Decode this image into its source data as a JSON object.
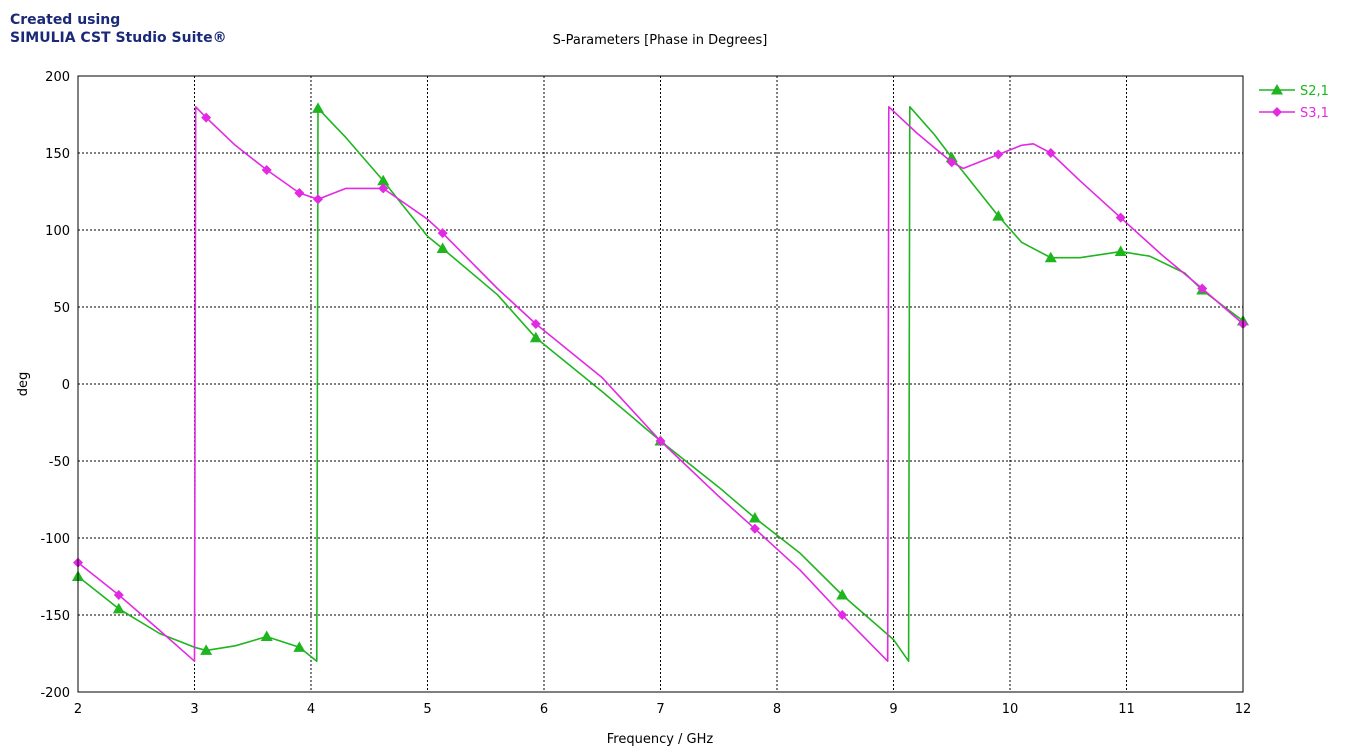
{
  "watermark": {
    "line1": "Created using",
    "line2": "SIMULIA CST Studio Suite®"
  },
  "chart_data": {
    "type": "line",
    "title": "S-Parameters [Phase in Degrees]",
    "xlabel": "Frequency / GHz",
    "ylabel": "deg",
    "xlim": [
      2,
      12
    ],
    "ylim": [
      -200,
      200
    ],
    "xticks": [
      "2",
      "3",
      "4",
      "5",
      "6",
      "7",
      "8",
      "9",
      "10",
      "11",
      "12"
    ],
    "yticks": [
      "200",
      "150",
      "100",
      "50",
      "0",
      "-50",
      "-100",
      "-150",
      "-200"
    ],
    "grid": true,
    "legend_position": "right",
    "series": [
      {
        "name": "S2,1",
        "color": "#1fb51f",
        "marker": "triangle",
        "x": [
          2.0,
          2.35,
          2.7,
          3.0,
          3.1,
          3.35,
          3.62,
          3.9,
          4.05,
          4.06,
          4.3,
          4.62,
          5.0,
          5.13,
          5.6,
          5.93,
          6.5,
          7.0,
          7.5,
          7.81,
          8.2,
          8.56,
          9.0,
          9.13,
          9.14,
          9.35,
          9.5,
          9.9,
          10.1,
          10.35,
          10.6,
          10.95,
          11.2,
          11.5,
          11.65,
          12.0
        ],
        "y": [
          -125,
          -146,
          -162,
          -171,
          -173,
          -170,
          -164,
          -171,
          -180,
          179,
          160,
          132,
          96,
          88,
          58,
          30,
          -5,
          -37,
          -67,
          -87,
          -110,
          -137,
          -166,
          -180,
          180,
          162,
          147,
          109,
          92,
          82,
          82,
          86,
          83,
          72,
          61,
          41
        ],
        "markers_x": [
          2.0,
          2.35,
          3.1,
          3.62,
          3.9,
          4.06,
          4.62,
          5.13,
          5.93,
          7.0,
          7.81,
          8.56,
          9.5,
          9.9,
          10.35,
          10.95,
          11.65,
          12.0
        ],
        "markers_y": [
          -125,
          -146,
          -173,
          -164,
          -171,
          179,
          132,
          88,
          30,
          -37,
          -87,
          -137,
          147,
          109,
          82,
          86,
          61,
          41
        ]
      },
      {
        "name": "S3,1",
        "color": "#e32ae3",
        "marker": "diamond",
        "x": [
          2.0,
          2.35,
          2.7,
          3.0,
          3.01,
          3.1,
          3.35,
          3.62,
          3.9,
          4.06,
          4.3,
          4.62,
          5.0,
          5.13,
          5.6,
          5.93,
          6.5,
          7.0,
          7.5,
          7.81,
          8.2,
          8.56,
          8.95,
          8.96,
          9.2,
          9.5,
          9.6,
          9.7,
          9.9,
          10.1,
          10.2,
          10.35,
          10.6,
          10.95,
          11.3,
          11.65,
          12.0
        ],
        "y": [
          -116,
          -137,
          -160,
          -180,
          180,
          173,
          155,
          139,
          124,
          120,
          127,
          127,
          107,
          98,
          62,
          39,
          4,
          -37,
          -73,
          -94,
          -121,
          -150,
          -180,
          180,
          163,
          144,
          140,
          143,
          149,
          155,
          156,
          150,
          132,
          108,
          84,
          62,
          39
        ],
        "markers_x": [
          2.0,
          2.35,
          3.1,
          3.62,
          3.9,
          4.06,
          4.62,
          5.13,
          5.93,
          7.0,
          7.81,
          8.56,
          9.5,
          9.9,
          10.35,
          10.95,
          11.65,
          12.0
        ],
        "markers_y": [
          -116,
          -137,
          173,
          139,
          124,
          120,
          127,
          98,
          39,
          -37,
          -94,
          -150,
          144,
          149,
          150,
          108,
          62,
          39
        ]
      }
    ]
  }
}
